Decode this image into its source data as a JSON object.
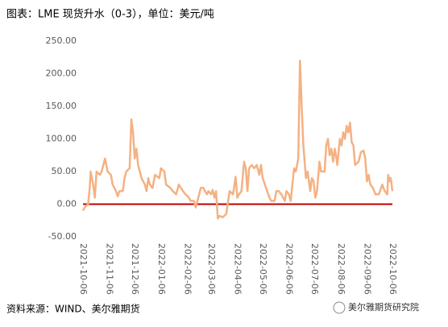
{
  "chart_data": {
    "type": "line",
    "title": "图表：LME 现货升水（0-3），单位：美元/吨",
    "xlim": [
      "2021-10-06",
      "2022-10-06"
    ],
    "xticks": [
      "2021-10-06",
      "2021-11-06",
      "2021-12-06",
      "2022-01-06",
      "2022-02-06",
      "2022-03-06",
      "2022-04-06",
      "2022-05-06",
      "2022-06-06",
      "2022-07-06",
      "2022-08-06",
      "2022-09-06",
      "2022-10-06"
    ],
    "ylim": [
      -50,
      250
    ],
    "yticks": [
      {
        "value": 250,
        "label": "250.00"
      },
      {
        "value": 200,
        "label": "200.00"
      },
      {
        "value": 150,
        "label": "150.00"
      },
      {
        "value": 100,
        "label": "100.00"
      },
      {
        "value": 50,
        "label": "50.00"
      },
      {
        "value": 0,
        "label": "0.00"
      },
      {
        "value": -50,
        "label": "-50.00"
      }
    ],
    "zero_line_color": "#c00000",
    "x": [
      "2021-10-06",
      "2021-10-08",
      "2021-10-12",
      "2021-10-14",
      "2021-10-15",
      "2021-10-18",
      "2021-10-20",
      "2021-10-22",
      "2021-10-26",
      "2021-10-28",
      "2021-11-01",
      "2021-11-04",
      "2021-11-08",
      "2021-11-10",
      "2021-11-14",
      "2021-11-16",
      "2021-11-18",
      "2021-11-22",
      "2021-11-24",
      "2021-11-26",
      "2021-11-30",
      "2021-12-02",
      "2021-12-04",
      "2021-12-06",
      "2021-12-08",
      "2021-12-10",
      "2021-12-14",
      "2021-12-18",
      "2021-12-20",
      "2021-12-22",
      "2021-12-24",
      "2021-12-27",
      "2021-12-30",
      "2022-01-04",
      "2022-01-06",
      "2022-01-10",
      "2022-01-12",
      "2022-01-17",
      "2022-01-20",
      "2022-01-24",
      "2022-01-27",
      "2022-02-01",
      "2022-02-04",
      "2022-02-08",
      "2022-02-10",
      "2022-02-14",
      "2022-02-16",
      "2022-02-18",
      "2022-02-22",
      "2022-02-25",
      "2022-03-01",
      "2022-03-03",
      "2022-03-06",
      "2022-03-08",
      "2022-03-10",
      "2022-03-12",
      "2022-03-14",
      "2022-03-16",
      "2022-03-20",
      "2022-03-24",
      "2022-03-28",
      "2022-04-01",
      "2022-04-04",
      "2022-04-06",
      "2022-04-08",
      "2022-04-11",
      "2022-04-14",
      "2022-04-16",
      "2022-04-18",
      "2022-04-20",
      "2022-04-23",
      "2022-04-26",
      "2022-04-29",
      "2022-05-02",
      "2022-05-04",
      "2022-05-06",
      "2022-05-10",
      "2022-05-14",
      "2022-05-16",
      "2022-05-20",
      "2022-05-22",
      "2022-05-25",
      "2022-05-28",
      "2022-06-01",
      "2022-06-03",
      "2022-06-06",
      "2022-06-08",
      "2022-06-12",
      "2022-06-14",
      "2022-06-17",
      "2022-06-18",
      "2022-06-19",
      "2022-06-21",
      "2022-06-23",
      "2022-06-26",
      "2022-06-28",
      "2022-07-01",
      "2022-07-03",
      "2022-07-05",
      "2022-07-07",
      "2022-07-09",
      "2022-07-12",
      "2022-07-14",
      "2022-07-18",
      "2022-07-20",
      "2022-07-22",
      "2022-07-24",
      "2022-07-26",
      "2022-07-28",
      "2022-07-30",
      "2022-08-01",
      "2022-08-02",
      "2022-08-05",
      "2022-08-07",
      "2022-08-09",
      "2022-08-11",
      "2022-08-13",
      "2022-08-15",
      "2022-08-17",
      "2022-08-19",
      "2022-08-21",
      "2022-08-23",
      "2022-08-27",
      "2022-08-30",
      "2022-09-02",
      "2022-09-04",
      "2022-09-06",
      "2022-09-08",
      "2022-09-10",
      "2022-09-13",
      "2022-09-16",
      "2022-09-20",
      "2022-09-24",
      "2022-09-27",
      "2022-09-30",
      "2022-10-01",
      "2022-10-03",
      "2022-10-04",
      "2022-10-06"
    ],
    "series": [
      {
        "color": "#f4b183",
        "values": [
          -10,
          -5,
          0,
          25,
          50,
          30,
          10,
          50,
          45,
          50,
          70,
          50,
          45,
          30,
          20,
          12,
          20,
          20,
          40,
          50,
          55,
          130,
          110,
          70,
          85,
          60,
          40,
          30,
          20,
          40,
          30,
          25,
          45,
          40,
          55,
          50,
          30,
          25,
          20,
          15,
          30,
          20,
          15,
          10,
          5,
          5,
          -5,
          5,
          25,
          25,
          15,
          20,
          15,
          22,
          10,
          20,
          -22,
          -18,
          -20,
          -15,
          20,
          15,
          42,
          10,
          15,
          20,
          65,
          55,
          20,
          55,
          60,
          55,
          60,
          45,
          60,
          40,
          25,
          10,
          5,
          5,
          20,
          20,
          15,
          5,
          20,
          15,
          5,
          55,
          50,
          70,
          150,
          220,
          150,
          90,
          40,
          50,
          20,
          40,
          35,
          10,
          20,
          65,
          50,
          50,
          90,
          100,
          75,
          85,
          65,
          85,
          70,
          60,
          100,
          90,
          110,
          100,
          120,
          110,
          125,
          95,
          90,
          60,
          65,
          80,
          82,
          70,
          35,
          45,
          30,
          25,
          15,
          15,
          30,
          20,
          15,
          45,
          35,
          40,
          20
        ]
      }
    ]
  },
  "source": "资料来源：WIND、美尔雅期货",
  "watermark": "美尔雅期货研究院"
}
